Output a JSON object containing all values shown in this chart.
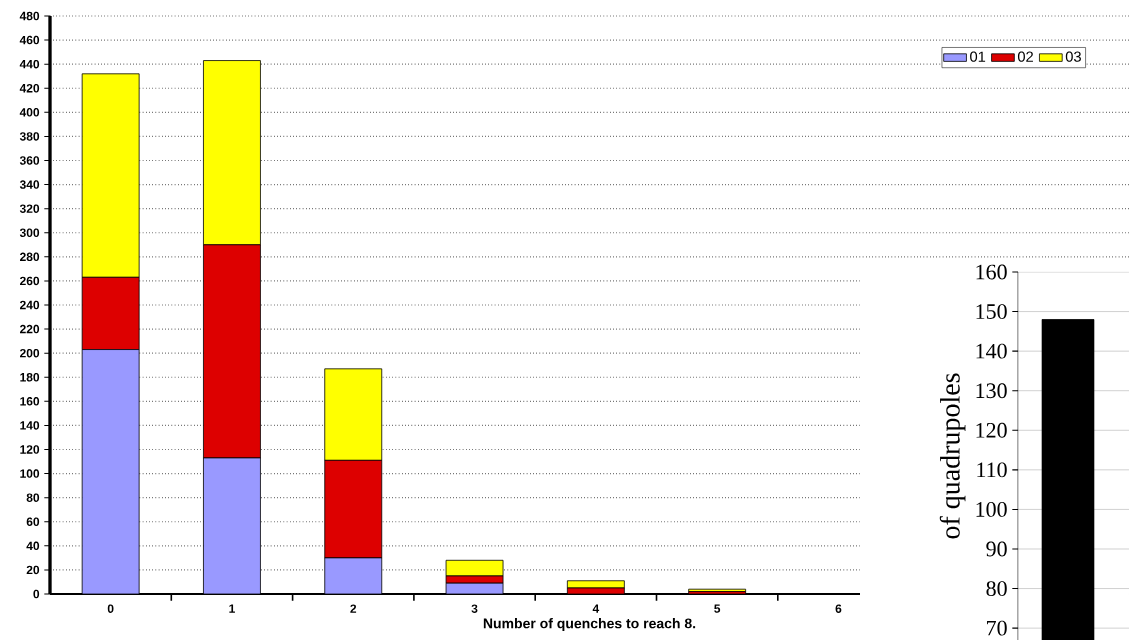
{
  "chart_data": [
    {
      "type": "bar",
      "stacked": true,
      "xlabel": "Number of quenches to reach 8.",
      "categories": [
        "0",
        "1",
        "2",
        "3",
        "4",
        "5",
        "6"
      ],
      "series": [
        {
          "name": "01",
          "color": "#9999ff",
          "values": [
            203,
            113,
            30,
            9,
            0,
            0,
            0
          ]
        },
        {
          "name": "02",
          "color": "#dd0000",
          "values": [
            60,
            177,
            81,
            6,
            5,
            2,
            0
          ]
        },
        {
          "name": "03",
          "color": "#ffff00",
          "values": [
            169,
            153,
            76,
            13,
            6,
            2,
            0
          ]
        }
      ],
      "ylim": [
        0,
        480
      ],
      "yticks": [
        0,
        20,
        40,
        60,
        80,
        100,
        120,
        140,
        160,
        180,
        200,
        220,
        240,
        260,
        280,
        300,
        320,
        340,
        360,
        380,
        400,
        420,
        440,
        460,
        480
      ],
      "grid": "y",
      "legend": "top right"
    },
    {
      "type": "bar",
      "ylabel": "of quadrupoles",
      "categories": [
        null
      ],
      "values": [
        148
      ],
      "color": "#000000",
      "ylim": [
        67,
        160
      ],
      "yticks": [
        70,
        80,
        90,
        100,
        110,
        120,
        130,
        140,
        150,
        160
      ],
      "grid": "y"
    }
  ]
}
